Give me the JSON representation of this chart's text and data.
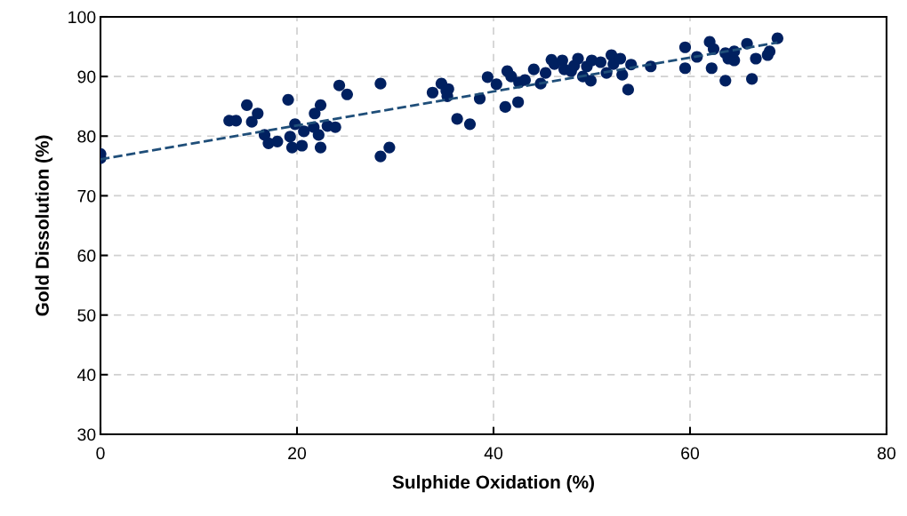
{
  "chart_data": {
    "type": "scatter",
    "xlabel": "Sulphide Oxidation (%)",
    "ylabel": "Gold Dissolution (%)",
    "xlim": [
      0,
      80
    ],
    "xticks": [
      0,
      20,
      40,
      60,
      80
    ],
    "ylim": [
      30,
      100
    ],
    "yticks": [
      30,
      40,
      50,
      60,
      70,
      80,
      90,
      100
    ],
    "grid": true,
    "legend": false,
    "series": [
      {
        "color": "#002060",
        "marker": "circle",
        "x": [
          0,
          0,
          13.1,
          13.8,
          14.9,
          15.4,
          16.0,
          16.7,
          17.1,
          18.0,
          19.1,
          19.3,
          19.5,
          19.8,
          20.7,
          20.5,
          21.8,
          21.7,
          22.2,
          22.4,
          22.4,
          23.1,
          23.9,
          24.3,
          25.1,
          28.5,
          28.5,
          29.4,
          33.8,
          34.7,
          35.2,
          35.3,
          35.4,
          36.3,
          37.6,
          38.6,
          39.4,
          40.3,
          41.2,
          41.4,
          41.8,
          42.5,
          42.6,
          43.2,
          44.1,
          44.8,
          45.3,
          45.9,
          46.2,
          47.0,
          47.2,
          47.9,
          48.2,
          48.6,
          49.1,
          49.5,
          49.9,
          50.0,
          50.9,
          51.5,
          52.0,
          52.2,
          52.9,
          53.1,
          53.7,
          54.0,
          56.0,
          59.5,
          59.5,
          60.7,
          62.0,
          62.2,
          62.4,
          63.6,
          63.6,
          63.9,
          64.5,
          64.5,
          65.8,
          66.3,
          66.7,
          67.9,
          68.1,
          68.9
        ],
        "values": [
          77.0,
          76.3,
          82.6,
          82.6,
          85.2,
          82.4,
          83.8,
          80.2,
          78.8,
          79.1,
          86.1,
          79.9,
          78.1,
          82.0,
          80.8,
          78.4,
          83.8,
          81.5,
          80.2,
          85.2,
          78.1,
          81.7,
          81.5,
          88.5,
          87.0,
          76.6,
          88.8,
          78.1,
          87.3,
          88.8,
          87.6,
          86.7,
          87.9,
          82.9,
          82.0,
          86.3,
          89.9,
          88.7,
          84.9,
          90.9,
          90.0,
          85.7,
          89.0,
          89.4,
          91.2,
          88.8,
          90.6,
          92.8,
          92.1,
          92.7,
          91.2,
          90.9,
          91.8,
          93.0,
          90.0,
          91.7,
          89.3,
          92.7,
          92.4,
          90.6,
          93.6,
          92.1,
          93.0,
          90.3,
          87.8,
          92.0,
          91.7,
          94.9,
          91.4,
          93.3,
          95.8,
          91.4,
          94.6,
          89.3,
          93.9,
          93.0,
          92.7,
          94.2,
          95.5,
          89.6,
          93.0,
          93.6,
          94.2,
          96.4
        ]
      },
      {
        "type": "line",
        "color": "#1f4e79",
        "line_style": "dashed",
        "marker": "none",
        "x": [
          0,
          68.9
        ],
        "values": [
          76.1,
          95.7
        ]
      }
    ]
  }
}
